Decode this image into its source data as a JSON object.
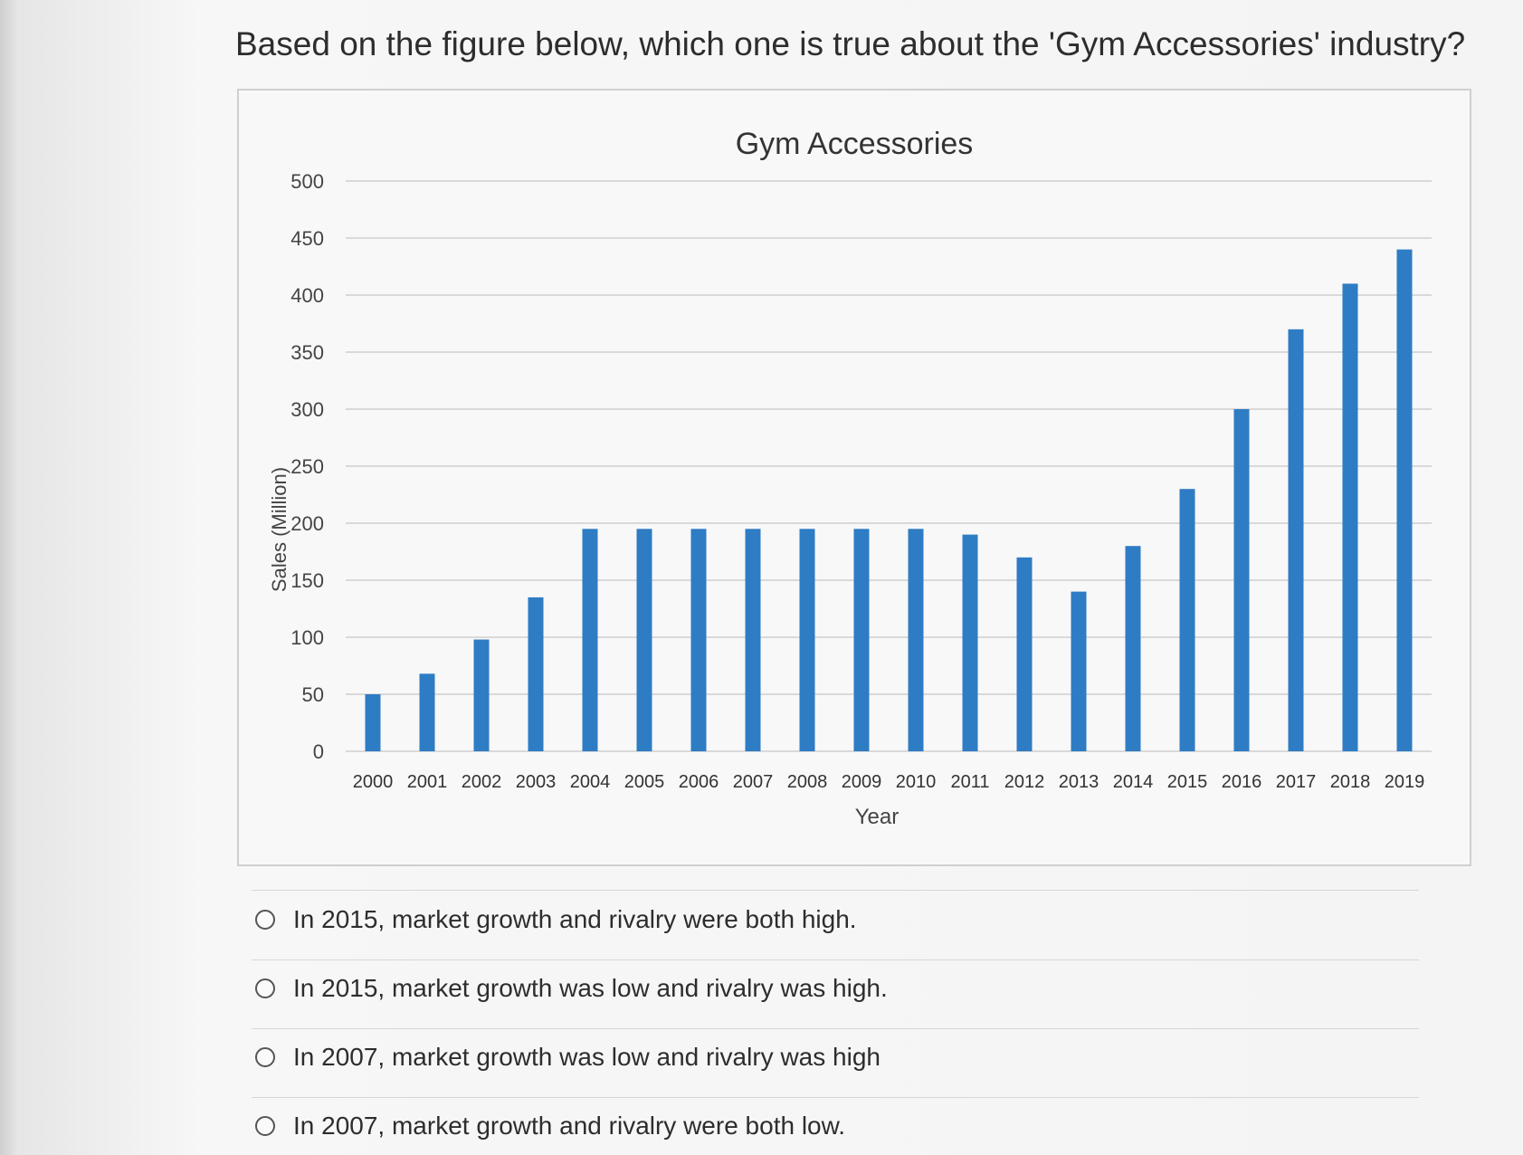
{
  "question": "Based on the figure below, which one is true about the 'Gym Accessories' industry?",
  "chart_data": {
    "type": "bar",
    "title": "Gym Accessories",
    "xlabel": "Year",
    "ylabel": "Sales (Million)",
    "ylim": [
      0,
      500
    ],
    "yticks": [
      "0",
      "50",
      "100",
      "150",
      "200",
      "250",
      "300",
      "350",
      "400",
      "450",
      "500"
    ],
    "grid": true,
    "categories": [
      "2000",
      "2001",
      "2002",
      "2003",
      "2004",
      "2005",
      "2006",
      "2007",
      "2008",
      "2009",
      "2010",
      "2011",
      "2012",
      "2013",
      "2014",
      "2015",
      "2016",
      "2017",
      "2018",
      "2019"
    ],
    "values": [
      50,
      68,
      98,
      135,
      195,
      195,
      195,
      195,
      195,
      195,
      195,
      190,
      170,
      140,
      180,
      230,
      300,
      370,
      410,
      440
    ],
    "color": "#2e7cc4"
  },
  "options": [
    {
      "label": "In 2015, market growth and rivalry were both high."
    },
    {
      "label": "In 2015, market growth was low and rivalry was high."
    },
    {
      "label": "In 2007, market growth was low and rivalry was high"
    },
    {
      "label": "In 2007, market growth and rivalry were both low."
    }
  ]
}
